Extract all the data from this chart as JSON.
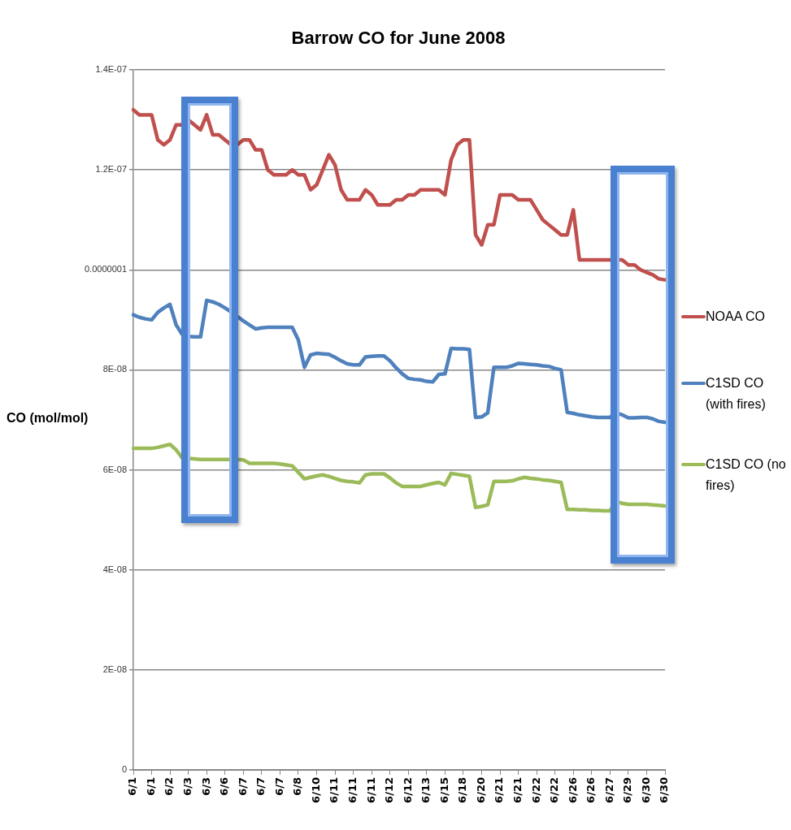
{
  "chart_data": {
    "type": "line",
    "title": "Barrow CO for June 2008",
    "ylabel": "CO (mol/mol)",
    "categories": [
      "6/1",
      null,
      null,
      "6/1",
      null,
      null,
      "6/2",
      null,
      null,
      "6/3",
      null,
      null,
      "6/3",
      null,
      null,
      "6/6",
      null,
      null,
      "6/7",
      null,
      null,
      "6/7",
      null,
      null,
      "6/7",
      null,
      null,
      "6/8",
      null,
      null,
      "6/10",
      null,
      null,
      "6/11",
      null,
      null,
      "6/11",
      null,
      null,
      "6/11",
      null,
      null,
      "6/12",
      null,
      null,
      "6/12",
      null,
      null,
      "6/13",
      null,
      null,
      "6/15",
      null,
      null,
      "6/18",
      null,
      null,
      "6/20",
      null,
      null,
      "6/21",
      null,
      null,
      "6/21",
      null,
      null,
      "6/22",
      null,
      null,
      "6/22",
      null,
      null,
      "6/26",
      null,
      null,
      "6/26",
      null,
      null,
      "6/27",
      null,
      null,
      "6/29",
      null,
      null,
      "6/30",
      null,
      null,
      "6/30"
    ],
    "ylim": [
      0,
      1.4e-07
    ],
    "yticks": [
      0,
      {
        "value": 2e-08,
        "label": "2E-08"
      },
      {
        "value": 4e-08,
        "label": "4E-08"
      },
      {
        "value": 6e-08,
        "label": "6E-08"
      },
      {
        "value": 8e-08,
        "label": "8E-08"
      },
      {
        "value": 1e-07,
        "label": "0.0000001"
      },
      {
        "value": 1.2e-07,
        "label": "1.2E-07"
      },
      {
        "value": 1.4e-07,
        "label": "1.4E-07"
      }
    ],
    "grid": "y",
    "legend": "right",
    "series": [
      {
        "name": "NOAA CO",
        "color": "#c0504d",
        "values": [
          1.32e-07,
          1.31e-07,
          1.31e-07,
          1.31e-07,
          1.26e-07,
          1.25e-07,
          1.26e-07,
          1.29e-07,
          1.29e-07,
          1.3e-07,
          1.29e-07,
          1.28e-07,
          1.31e-07,
          1.27e-07,
          1.27e-07,
          1.26e-07,
          1.25e-07,
          1.25e-07,
          1.26e-07,
          1.26e-07,
          1.24e-07,
          1.24e-07,
          1.2e-07,
          1.19e-07,
          1.19e-07,
          1.19e-07,
          1.2e-07,
          1.19e-07,
          1.19e-07,
          1.16e-07,
          1.17e-07,
          1.2e-07,
          1.23e-07,
          1.21e-07,
          1.16e-07,
          1.14e-07,
          1.14e-07,
          1.14e-07,
          1.16e-07,
          1.15e-07,
          1.13e-07,
          1.13e-07,
          1.13e-07,
          1.14e-07,
          1.14e-07,
          1.15e-07,
          1.15e-07,
          1.16e-07,
          1.16e-07,
          1.16e-07,
          1.16e-07,
          1.15e-07,
          1.22e-07,
          1.25e-07,
          1.26e-07,
          1.26e-07,
          1.07e-07,
          1.05e-07,
          1.09e-07,
          1.09e-07,
          1.15e-07,
          1.15e-07,
          1.15e-07,
          1.14e-07,
          1.14e-07,
          1.14e-07,
          1.12e-07,
          1.1e-07,
          1.09e-07,
          1.08e-07,
          1.07e-07,
          1.07e-07,
          1.12e-07,
          1.02e-07,
          1.02e-07,
          1.02e-07,
          1.02e-07,
          1.02e-07,
          1.02e-07,
          1.02e-07,
          1.02e-07,
          1.01e-07,
          1.01e-07,
          1e-07,
          9.95e-08,
          9.9e-08,
          9.82e-08,
          9.8e-08
        ]
      },
      {
        "name": "C1SD CO (with fires)",
        "color": "#4f81bd",
        "values": [
          9.1e-08,
          9.05e-08,
          9.02e-08,
          9e-08,
          9.15e-08,
          9.24e-08,
          9.31e-08,
          8.9e-08,
          8.71e-08,
          8.67e-08,
          8.66e-08,
          8.66e-08,
          9.39e-08,
          9.36e-08,
          9.31e-08,
          9.24e-08,
          9.16e-08,
          9.07e-08,
          8.98e-08,
          8.9e-08,
          8.82e-08,
          8.84e-08,
          8.85e-08,
          8.85e-08,
          8.85e-08,
          8.85e-08,
          8.85e-08,
          8.6e-08,
          8.05e-08,
          8.3e-08,
          8.33e-08,
          8.32e-08,
          8.31e-08,
          8.25e-08,
          8.18e-08,
          8.12e-08,
          8.1e-08,
          8.1e-08,
          8.26e-08,
          8.27e-08,
          8.28e-08,
          8.28e-08,
          8.18e-08,
          8.04e-08,
          7.92e-08,
          7.83e-08,
          7.81e-08,
          7.8e-08,
          7.77e-08,
          7.76e-08,
          7.91e-08,
          7.92e-08,
          8.43e-08,
          8.42e-08,
          8.42e-08,
          8.41e-08,
          7.05e-08,
          7.06e-08,
          7.14e-08,
          8.05e-08,
          8.05e-08,
          8.05e-08,
          8.08e-08,
          8.13e-08,
          8.12e-08,
          8.11e-08,
          8.1e-08,
          8.08e-08,
          8.07e-08,
          8.03e-08,
          8e-08,
          7.15e-08,
          7.13e-08,
          7.1e-08,
          7.08e-08,
          7.06e-08,
          7.05e-08,
          7.05e-08,
          7.05e-08,
          7.14e-08,
          7.1e-08,
          7.04e-08,
          7.04e-08,
          7.05e-08,
          7.05e-08,
          7.02e-08,
          6.97e-08,
          6.95e-08
        ]
      },
      {
        "name": "C1SD CO (no fires)",
        "color": "#9bbb59",
        "values": [
          6.43e-08,
          6.43e-08,
          6.43e-08,
          6.43e-08,
          6.45e-08,
          6.48e-08,
          6.51e-08,
          6.4e-08,
          6.24e-08,
          6.23e-08,
          6.22e-08,
          6.21e-08,
          6.21e-08,
          6.21e-08,
          6.21e-08,
          6.21e-08,
          6.21e-08,
          6.21e-08,
          6.2e-08,
          6.13e-08,
          6.13e-08,
          6.13e-08,
          6.13e-08,
          6.13e-08,
          6.12e-08,
          6.1e-08,
          6.08e-08,
          5.95e-08,
          5.82e-08,
          5.85e-08,
          5.88e-08,
          5.9e-08,
          5.87e-08,
          5.83e-08,
          5.79e-08,
          5.77e-08,
          5.76e-08,
          5.74e-08,
          5.9e-08,
          5.92e-08,
          5.92e-08,
          5.92e-08,
          5.84e-08,
          5.74e-08,
          5.67e-08,
          5.67e-08,
          5.67e-08,
          5.67e-08,
          5.7e-08,
          5.73e-08,
          5.75e-08,
          5.7e-08,
          5.93e-08,
          5.91e-08,
          5.89e-08,
          5.87e-08,
          5.25e-08,
          5.27e-08,
          5.3e-08,
          5.77e-08,
          5.77e-08,
          5.77e-08,
          5.78e-08,
          5.82e-08,
          5.85e-08,
          5.83e-08,
          5.82e-08,
          5.8e-08,
          5.79e-08,
          5.77e-08,
          5.75e-08,
          5.21e-08,
          5.21e-08,
          5.2e-08,
          5.2e-08,
          5.19e-08,
          5.19e-08,
          5.18e-08,
          5.18e-08,
          5.37e-08,
          5.33e-08,
          5.31e-08,
          5.31e-08,
          5.31e-08,
          5.31e-08,
          5.3e-08,
          5.29e-08,
          5.28e-08
        ]
      }
    ]
  }
}
